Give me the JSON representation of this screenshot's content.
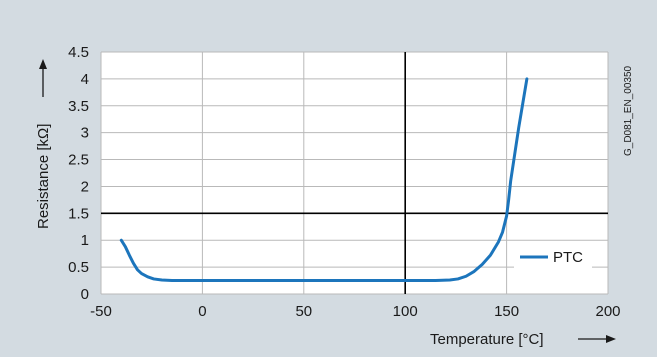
{
  "chart_data": {
    "type": "line",
    "xlabel": "Temperature [°C]",
    "ylabel": "Resistance [kΩ]",
    "xlim": [
      -50,
      200
    ],
    "ylim": [
      0,
      4.5
    ],
    "x_ticks": [
      -50,
      0,
      50,
      100,
      150,
      200
    ],
    "x_tick_labels": [
      "-50",
      "0",
      "50",
      "100",
      "150",
      "200"
    ],
    "y_ticks": [
      0,
      0.5,
      1,
      1.5,
      2,
      2.5,
      3,
      3.5,
      4,
      4.5
    ],
    "y_tick_labels": [
      "0",
      "0.5",
      "1",
      "1.5",
      "2",
      "2.5",
      "3",
      "3.5",
      "4",
      "4.5"
    ],
    "grid": true,
    "reference_lines": {
      "x": 100,
      "y": 1.5
    },
    "legend_position": "bottom-right",
    "side_code": "G_D081_EN_00350",
    "series": [
      {
        "name": "PTC",
        "color": "#1c75bc",
        "x": [
          -40,
          -38,
          -36,
          -34,
          -32,
          -30,
          -27,
          -24,
          -20,
          -15,
          -10,
          0,
          25,
          50,
          75,
          100,
          115,
          122,
          126,
          130,
          134,
          138,
          142,
          146,
          148,
          150,
          151,
          152,
          154,
          156,
          158,
          160
        ],
        "y": [
          1.0,
          0.88,
          0.72,
          0.57,
          0.45,
          0.38,
          0.32,
          0.28,
          0.26,
          0.25,
          0.25,
          0.25,
          0.25,
          0.25,
          0.25,
          0.25,
          0.25,
          0.26,
          0.28,
          0.33,
          0.42,
          0.55,
          0.72,
          0.97,
          1.15,
          1.45,
          1.75,
          2.1,
          2.6,
          3.1,
          3.55,
          4.0
        ]
      }
    ]
  }
}
